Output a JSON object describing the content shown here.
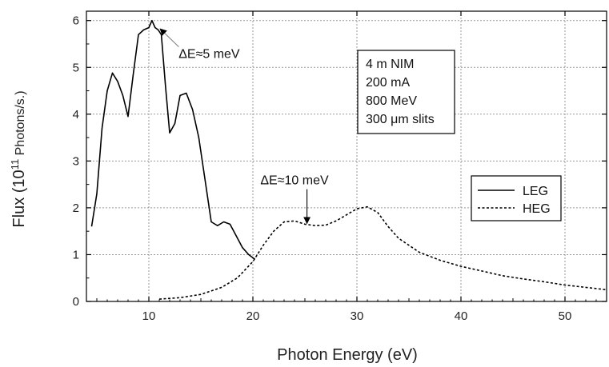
{
  "chart_data": {
    "type": "line",
    "xlabel": "Photon Energy (eV)",
    "ylabel_main": "Flux (10",
    "ylabel_sup": "11",
    "ylabel_tail": " Photons/s.)",
    "xlim": [
      4,
      54
    ],
    "ylim": [
      0,
      6.2
    ],
    "xticks": [
      10,
      20,
      30,
      40,
      50
    ],
    "yticks": [
      0,
      1,
      2,
      3,
      4,
      5,
      6
    ],
    "grid": true,
    "legend_position": "right",
    "series": [
      {
        "name": "LEG",
        "style": "solid",
        "x": [
          4.5,
          5.0,
          5.5,
          6.0,
          6.5,
          7.0,
          7.5,
          8.0,
          8.5,
          9.0,
          9.5,
          10.0,
          10.3,
          10.6,
          10.9,
          11.2,
          11.6,
          12.0,
          12.5,
          13.0,
          13.6,
          14.2,
          14.8,
          15.4,
          16.0,
          16.6,
          17.2,
          17.8,
          18.4,
          19.0,
          19.6,
          20.2
        ],
        "y": [
          1.6,
          2.3,
          3.7,
          4.5,
          4.88,
          4.7,
          4.4,
          3.95,
          4.85,
          5.7,
          5.8,
          5.85,
          6.0,
          5.85,
          5.8,
          5.7,
          4.6,
          3.6,
          3.8,
          4.4,
          4.45,
          4.1,
          3.5,
          2.6,
          1.7,
          1.62,
          1.7,
          1.65,
          1.4,
          1.15,
          1.0,
          0.9
        ]
      },
      {
        "name": "HEG",
        "style": "dashed",
        "x": [
          11,
          13,
          15,
          17,
          18.5,
          20,
          21,
          22,
          23,
          24,
          25,
          26,
          27,
          28,
          29,
          30,
          31,
          32,
          33,
          34,
          36,
          38,
          40,
          42,
          44,
          46,
          48,
          50,
          52,
          54
        ],
        "y": [
          0.05,
          0.08,
          0.15,
          0.3,
          0.5,
          0.85,
          1.2,
          1.5,
          1.7,
          1.72,
          1.65,
          1.62,
          1.63,
          1.72,
          1.85,
          1.98,
          2.02,
          1.9,
          1.6,
          1.35,
          1.05,
          0.88,
          0.75,
          0.65,
          0.55,
          0.48,
          0.42,
          0.35,
          0.3,
          0.25
        ]
      }
    ],
    "annotations": [
      {
        "text": "ΔE≈5 meV",
        "x": 15.8,
        "y": 5.2,
        "arrow_to_x": 11.1,
        "arrow_to_y": 5.82
      },
      {
        "text": "ΔE≈10 meV",
        "x": 24.0,
        "y": 2.5,
        "arrow_to_x": 25.2,
        "arrow_to_y": 1.67
      }
    ],
    "info_box": [
      "4 m NIM",
      "200 mA",
      "800 MeV",
      "300 μm slits"
    ]
  }
}
